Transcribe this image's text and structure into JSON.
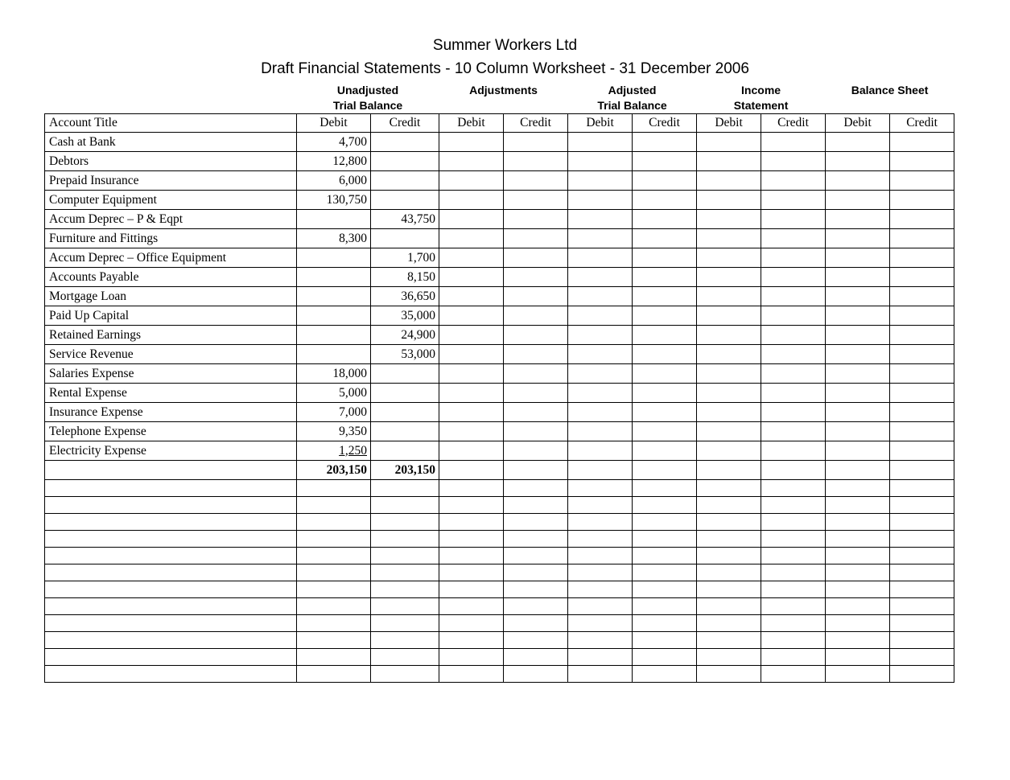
{
  "title": {
    "line1": "Summer Workers Ltd",
    "line2": "Draft Financial Statements - 10 Column Worksheet - 31 December 2006"
  },
  "column_groups": [
    {
      "line1": "Unadjusted",
      "line2": "Trial Balance"
    },
    {
      "line1": "Adjustments",
      "line2": ""
    },
    {
      "line1": "Adjusted",
      "line2": "Trial Balance"
    },
    {
      "line1": "Income",
      "line2": "Statement"
    },
    {
      "line1": "Balance Sheet",
      "line2": ""
    }
  ],
  "table": {
    "account_title_header": "Account Title",
    "debit_header": "Debit",
    "credit_header": "Credit",
    "rows": [
      {
        "account": "Cash at Bank",
        "utb_debit": "4,700",
        "utb_credit": ""
      },
      {
        "account": "Debtors",
        "utb_debit": "12,800",
        "utb_credit": ""
      },
      {
        "account": "Prepaid Insurance",
        "utb_debit": "6,000",
        "utb_credit": ""
      },
      {
        "account": "Computer Equipment",
        "utb_debit": "130,750",
        "utb_credit": ""
      },
      {
        "account": "Accum Deprec – P & Eqpt",
        "utb_debit": "",
        "utb_credit": "43,750"
      },
      {
        "account": "Furniture and Fittings",
        "utb_debit": "8,300",
        "utb_credit": ""
      },
      {
        "account": "Accum Deprec – Office Equipment",
        "utb_debit": "",
        "utb_credit": "1,700"
      },
      {
        "account": "Accounts Payable",
        "utb_debit": "",
        "utb_credit": "8,150"
      },
      {
        "account": "Mortgage Loan",
        "utb_debit": "",
        "utb_credit": "36,650"
      },
      {
        "account": "Paid Up Capital",
        "utb_debit": "",
        "utb_credit": "35,000"
      },
      {
        "account": "Retained Earnings",
        "utb_debit": "",
        "utb_credit": "24,900"
      },
      {
        "account": "Service Revenue",
        "utb_debit": "",
        "utb_credit": "53,000"
      },
      {
        "account": "Salaries Expense",
        "utb_debit": "18,000",
        "utb_credit": ""
      },
      {
        "account": "Rental Expense",
        "utb_debit": "5,000",
        "utb_credit": ""
      },
      {
        "account": "Insurance Expense",
        "utb_debit": "7,000",
        "utb_credit": ""
      },
      {
        "account": "Telephone Expense",
        "utb_debit": "9,350",
        "utb_credit": ""
      },
      {
        "account": "Electricity Expense",
        "utb_debit": "1,250",
        "utb_credit": "",
        "underline": true
      }
    ],
    "totals": {
      "utb_debit": "203,150",
      "utb_credit": "203,150"
    },
    "empty_row_count": 12
  }
}
